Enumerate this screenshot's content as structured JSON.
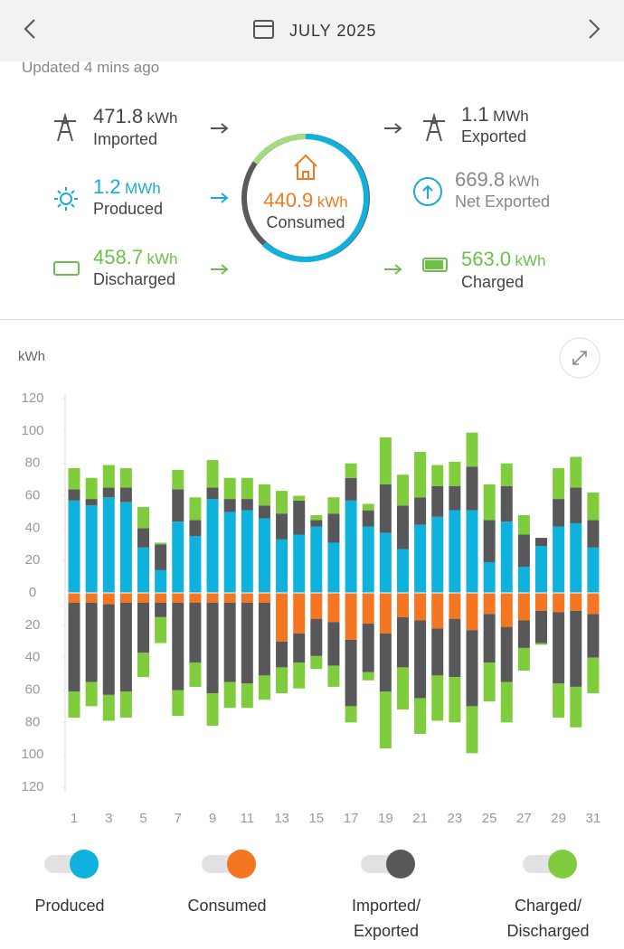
{
  "header": {
    "month": "JULY 2025"
  },
  "updated": "Updated 4 mins ago",
  "flows": {
    "imported": {
      "value": "471.8",
      "unit": "kWh",
      "label": "Imported"
    },
    "exported": {
      "value": "1.1",
      "unit": "MWh",
      "label": "Exported"
    },
    "produced": {
      "value": "1.2",
      "unit": "MWh",
      "label": "Produced"
    },
    "net_exported": {
      "value": "669.8",
      "unit": "kWh",
      "label": "Net Exported"
    },
    "discharged": {
      "value": "458.7",
      "unit": "kWh",
      "label": "Discharged"
    },
    "charged": {
      "value": "563.0",
      "unit": "kWh",
      "label": "Charged"
    },
    "consumed": {
      "value": "440.9",
      "unit": "kWh",
      "label": "Consumed"
    }
  },
  "chart_data": {
    "type": "bar",
    "ylabel": "kWh",
    "categories": [
      "1",
      null,
      "3",
      null,
      "5",
      null,
      "7",
      null,
      "9",
      null,
      "11",
      null,
      "13",
      null,
      "15",
      null,
      "17",
      null,
      "19",
      null,
      "21",
      null,
      "23",
      null,
      "25",
      null,
      "27",
      null,
      "29",
      null,
      "31"
    ],
    "ylim": [
      -120,
      120
    ],
    "yticks": [
      120,
      100,
      80,
      60,
      40,
      20,
      0,
      {
        "value": -20,
        "label": "20"
      },
      {
        "value": -40,
        "label": "40"
      },
      {
        "value": -60,
        "label": "60"
      },
      {
        "value": -80,
        "label": "80"
      },
      {
        "value": -100,
        "label": "100"
      },
      {
        "value": -120,
        "label": "120"
      }
    ],
    "series": [
      {
        "name": "Produced",
        "color": "#0fb1dd",
        "values": [
          57,
          54,
          59,
          56,
          28,
          14,
          44,
          35,
          58,
          50,
          51,
          46,
          33,
          36,
          41,
          31,
          57,
          41,
          37,
          27,
          42,
          47,
          51,
          51,
          19,
          44,
          16,
          29,
          41,
          43,
          28
        ]
      },
      {
        "name": "Consumed",
        "color": "#f47621",
        "values": [
          -6,
          -6,
          -7,
          -6,
          -6,
          -6,
          -6,
          -6,
          -6,
          -6,
          -6,
          -6,
          -30,
          -25,
          -16,
          -18,
          -29,
          -19,
          -25,
          -15,
          -17,
          -22,
          -16,
          -23,
          -13,
          -21,
          -17,
          -11,
          -12,
          -11,
          -13
        ]
      },
      {
        "name": "Imported/\nExported",
        "color": "#58585b",
        "values": [
          7,
          4,
          6,
          9,
          12,
          16,
          20,
          10,
          7,
          8,
          7,
          8,
          16,
          21,
          4,
          18,
          14,
          10,
          30,
          27,
          17,
          19,
          15,
          27,
          26,
          22,
          20,
          5,
          17,
          22,
          17
        ],
        "values_below": [
          -55,
          -49,
          -56,
          -55,
          -31,
          -9,
          -54,
          -37,
          -56,
          -49,
          -50,
          -45,
          -16,
          -18,
          -23,
          -27,
          -41,
          -30,
          -36,
          -31,
          -48,
          -29,
          -36,
          -47,
          -30,
          -34,
          -17,
          -20,
          -44,
          -47,
          -27
        ]
      },
      {
        "name": "Charged/\nDischarged",
        "color": "#7fcc3c",
        "values": [
          13,
          13,
          14,
          12,
          13,
          1,
          12,
          14,
          17,
          13,
          13,
          13,
          14,
          3,
          3,
          10,
          9,
          4,
          29,
          19,
          28,
          13,
          15,
          21,
          22,
          14,
          12,
          0,
          19,
          19,
          17
        ],
        "values_below": [
          -16,
          -15,
          -16,
          -16,
          -15,
          -16,
          -16,
          -15,
          -20,
          -16,
          -15,
          -15,
          -16,
          -16,
          -8,
          -13,
          -10,
          -5,
          -35,
          -26,
          -22,
          -28,
          -28,
          -29,
          -24,
          -25,
          -14,
          -1,
          -21,
          -25,
          -22
        ]
      }
    ]
  }
}
